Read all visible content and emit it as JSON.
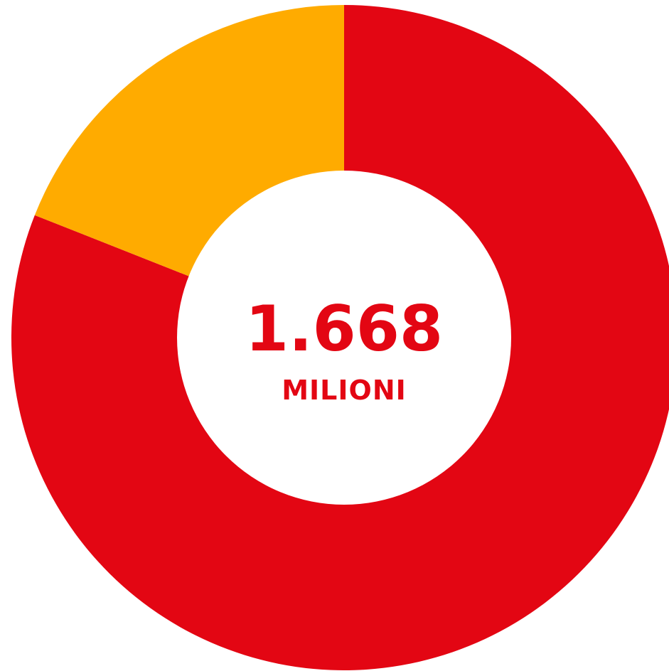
{
  "chart_data": {
    "type": "pie",
    "variant": "donut",
    "title": "",
    "center_value": "1.668",
    "center_unit": "MILIONI",
    "slices": [
      {
        "value": 81,
        "color": "#e30613"
      },
      {
        "value": 19,
        "color": "#ffab00"
      }
    ],
    "text_color": "#e30613",
    "legend": "none"
  }
}
